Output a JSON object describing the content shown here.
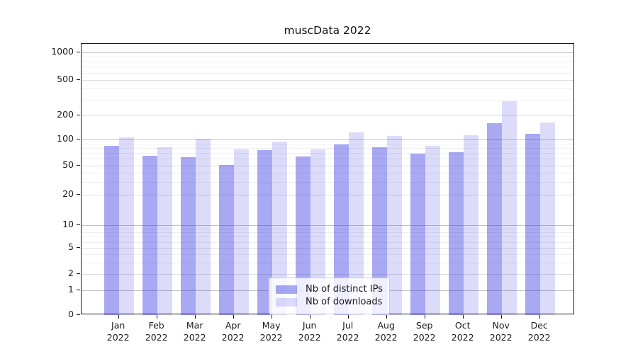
{
  "figure": {
    "title": "muscData 2022",
    "background": "#ffffff"
  },
  "legend": {
    "position": "lower center",
    "items": [
      {
        "label": "Nb of distinct IPs",
        "color": "rgba(38,38,224,0.40)"
      },
      {
        "label": "Nb of downloads",
        "color": "rgba(38,38,224,0.16)"
      }
    ]
  },
  "chart_data": {
    "type": "bar",
    "title": "muscData 2022",
    "categories": [
      "Jan 2022",
      "Feb 2022",
      "Mar 2022",
      "Apr 2022",
      "May 2022",
      "Jun 2022",
      "Jul 2022",
      "Aug 2022",
      "Sep 2022",
      "Oct 2022",
      "Nov 2022",
      "Dec 2022"
    ],
    "series": [
      {
        "name": "Nb of distinct IPs",
        "color": "rgba(38,38,224,0.40)",
        "values": [
          85,
          65,
          63,
          51,
          75,
          64,
          88,
          82,
          69,
          72,
          160,
          118
        ]
      },
      {
        "name": "Nb of downloads",
        "color": "rgba(38,38,224,0.16)",
        "values": [
          107,
          82,
          103,
          77,
          95,
          77,
          122,
          110,
          85,
          112,
          290,
          163
        ]
      }
    ],
    "xlabel": "",
    "ylabel": "",
    "yscale": "log-like (0,1,2,5,10,20,50,100,200,500,1000)",
    "yticks": [
      0,
      1,
      2,
      5,
      10,
      20,
      50,
      100,
      200,
      500,
      1000
    ],
    "ylim": [
      0,
      1300
    ],
    "grid": true,
    "legend_position": "lower center"
  }
}
